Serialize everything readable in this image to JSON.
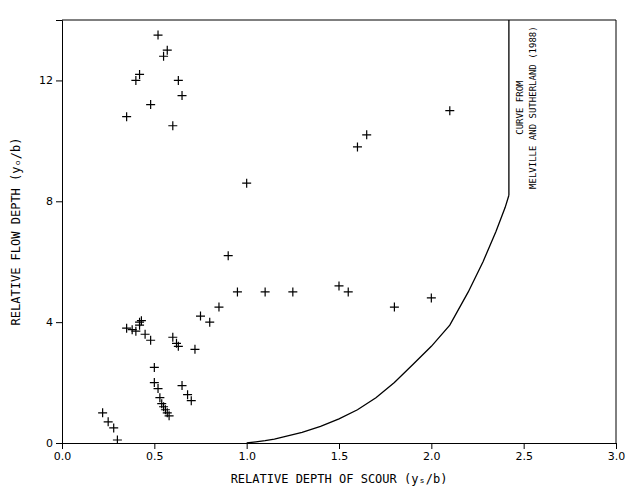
{
  "chart_data": {
    "type": "scatter",
    "xlabel": "RELATIVE DEPTH OF SCOUR (yₛ/b)",
    "ylabel": "RELATIVE FLOW DEPTH (yₒ/b)",
    "xlim": [
      0.0,
      3.0
    ],
    "ylim": [
      0,
      14
    ],
    "xticks": [
      {
        "value": 0.0,
        "label": "0.0"
      },
      0.5,
      {
        "value": 1.0,
        "label": "1.0"
      },
      1.5,
      {
        "value": 2.0,
        "label": "2.0"
      },
      2.5,
      {
        "value": 3.0,
        "label": "3.0"
      }
    ],
    "yticks": [
      0,
      4,
      8,
      12
    ],
    "grid": false,
    "annotations": [
      "CURVE FROM",
      "MELVILLE AND SUTHERLAND (1988)"
    ],
    "series": [
      {
        "type": "scatter",
        "marker": "plus",
        "color": "#000000",
        "x": [
          0.22,
          0.25,
          0.28,
          0.3,
          0.35,
          0.38,
          0.4,
          0.42,
          0.42,
          0.43,
          0.45,
          0.48,
          0.5,
          0.5,
          0.52,
          0.53,
          0.54,
          0.55,
          0.56,
          0.57,
          0.58,
          0.6,
          0.62,
          0.63,
          0.65,
          0.68,
          0.7,
          0.72,
          0.75,
          0.8,
          0.85,
          0.9,
          0.95,
          1.0,
          1.1,
          1.25,
          1.5,
          1.55,
          1.6,
          1.65,
          1.8,
          2.0,
          2.1
        ],
        "values": [
          1.0,
          0.7,
          0.5,
          0.1,
          3.8,
          3.75,
          3.7,
          3.9,
          4.0,
          4.05,
          3.6,
          3.4,
          2.5,
          2.0,
          1.8,
          1.5,
          1.3,
          1.2,
          1.1,
          1.0,
          0.9,
          3.5,
          3.3,
          3.2,
          1.9,
          1.6,
          1.4,
          3.1,
          4.2,
          4.0,
          4.5,
          6.2,
          5.0,
          8.6,
          5.0,
          5.0,
          5.2,
          5.0,
          9.8,
          10.2,
          4.5,
          4.8,
          11.0
        ]
      },
      {
        "type": "scatter",
        "marker": "plus",
        "color": "#000000",
        "x": [
          0.35,
          0.4,
          0.42,
          0.48,
          0.52,
          0.55,
          0.57,
          0.6,
          0.63,
          0.65
        ],
        "values": [
          10.8,
          12.0,
          12.2,
          11.2,
          13.5,
          12.8,
          13.0,
          10.5,
          12.0,
          11.5
        ]
      },
      {
        "type": "line",
        "line_style": "solid",
        "color": "#000000",
        "x": [
          1.0,
          1.05,
          1.1,
          1.15,
          1.2,
          1.3,
          1.4,
          1.5,
          1.6,
          1.7,
          1.8,
          1.9,
          2.0,
          2.1,
          2.2,
          2.28,
          2.35,
          2.4,
          2.42
        ],
        "values": [
          0.0,
          0.04,
          0.08,
          0.13,
          0.2,
          0.35,
          0.55,
          0.8,
          1.1,
          1.5,
          2.0,
          2.6,
          3.2,
          3.9,
          5.0,
          6.0,
          7.0,
          7.8,
          8.2
        ]
      },
      {
        "type": "line",
        "line_style": "solid",
        "color": "#000000",
        "x": [
          2.42,
          2.42
        ],
        "values": [
          8.2,
          14.0
        ]
      }
    ]
  }
}
